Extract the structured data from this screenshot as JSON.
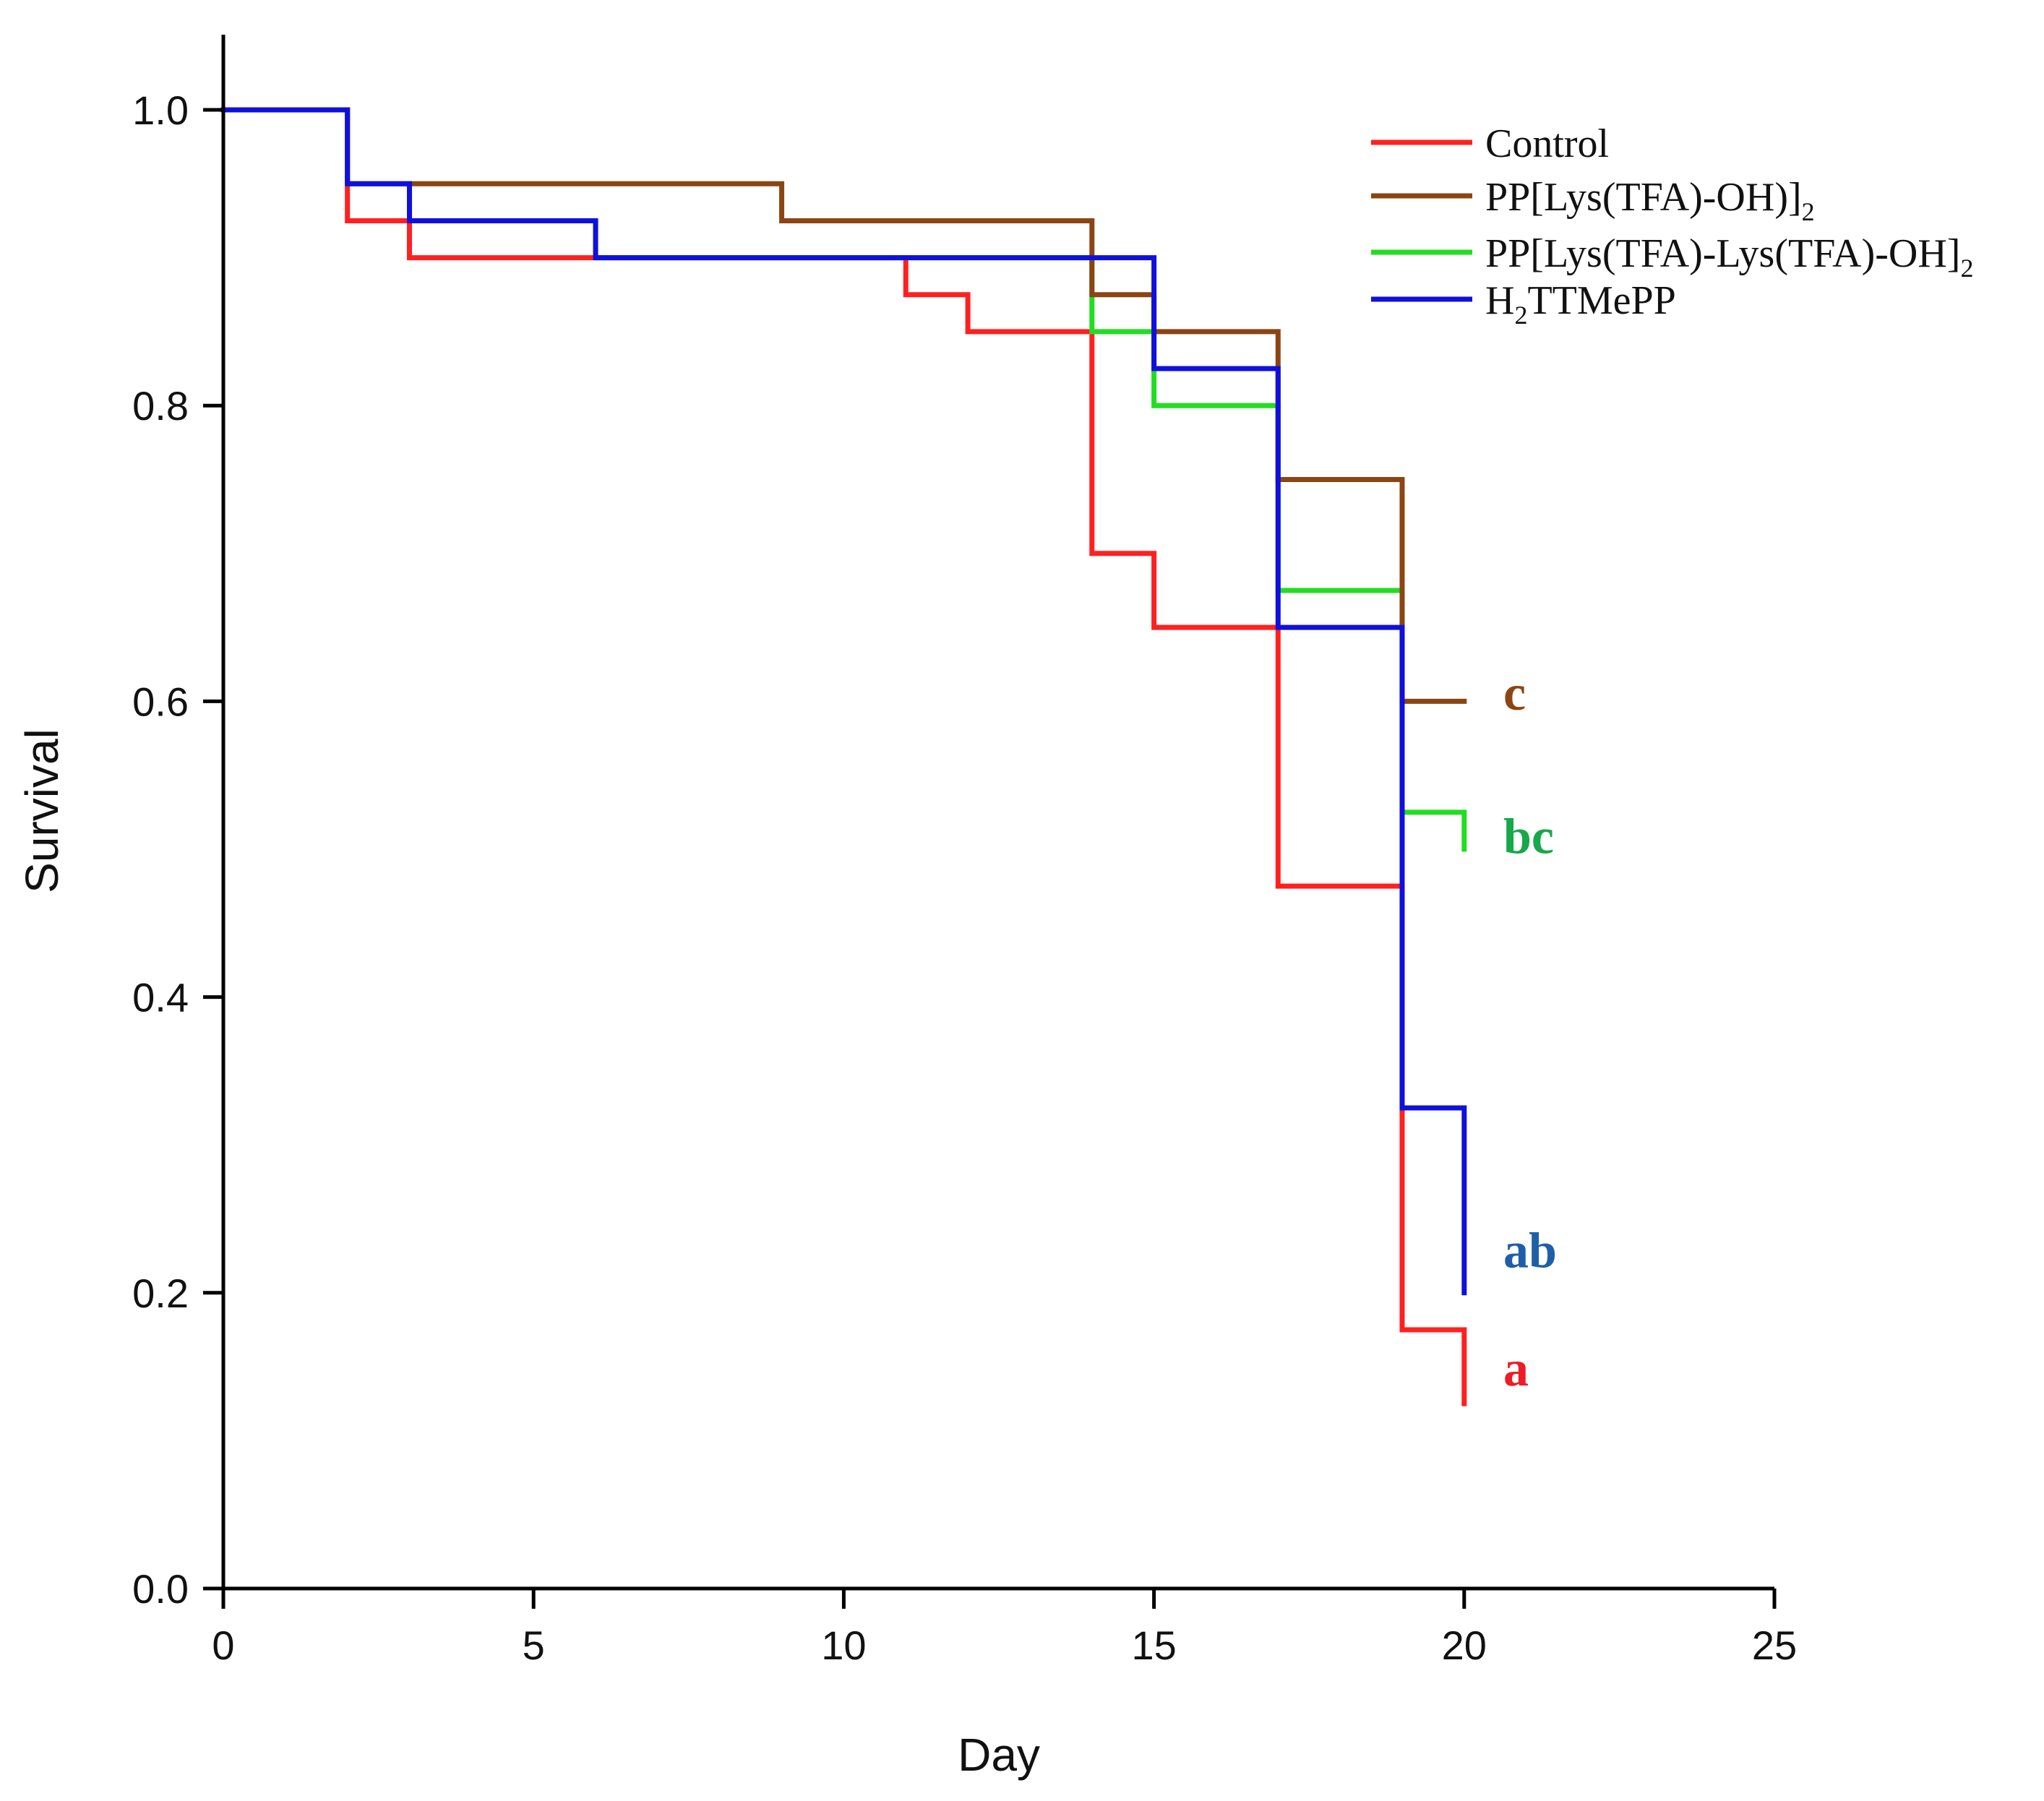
{
  "chart_data": {
    "type": "line",
    "subtype": "kaplan-meier step survival",
    "title": "",
    "xlabel": "Day",
    "ylabel": "Survival",
    "xlim": [
      0,
      25
    ],
    "ylim": [
      0,
      1.0
    ],
    "x_ticks": [
      0,
      5,
      10,
      15,
      20,
      25
    ],
    "x_tick_labels": [
      "0",
      "5",
      "10",
      "15",
      "20",
      "25"
    ],
    "y_ticks": [
      0.0,
      0.2,
      0.4,
      0.6,
      0.8,
      1.0
    ],
    "y_tick_labels": [
      "0.0",
      "0.2",
      "0.4",
      "0.6",
      "0.8",
      "1.0"
    ],
    "grid": false,
    "legend_position": "top-right",
    "series": [
      {
        "name": "Control",
        "legend": {
          "main": "Control",
          "sub": "",
          "tail": "",
          "pre": ""
        },
        "color": "#ff2020",
        "steps": [
          [
            0,
            1.0
          ],
          [
            2,
            0.925
          ],
          [
            3,
            0.9
          ],
          [
            11,
            0.875
          ],
          [
            12,
            0.85
          ],
          [
            14,
            0.7
          ],
          [
            15,
            0.65
          ],
          [
            17,
            0.475
          ],
          [
            19,
            0.175
          ],
          [
            20,
            0.125
          ]
        ],
        "end_x": 20,
        "significance": "a",
        "significance_color": "#ee1c25",
        "significance_value": 0.148
      },
      {
        "name": "PP[Lys(TFA)-OH)]2",
        "legend": {
          "pre": "",
          "main": "PP[Lys(TFA)-OH)]",
          "sub": "2",
          "tail": ""
        },
        "color": "#8b4513",
        "steps": [
          [
            0,
            1.0
          ],
          [
            2,
            0.95
          ],
          [
            9,
            0.925
          ],
          [
            14,
            0.875
          ],
          [
            15,
            0.85
          ],
          [
            17,
            0.75
          ],
          [
            19,
            0.6
          ]
        ],
        "end_x": 20,
        "significance": "c",
        "significance_color": "#8b4513",
        "significance_value": 0.605
      },
      {
        "name": "PP[Lys(TFA)-Lys(TFA)-OH]2",
        "legend": {
          "pre": "",
          "main": "PP[Lys(TFA)-Lys(TFA)-OH]",
          "sub": "2",
          "tail": ""
        },
        "color": "#22dd22",
        "steps": [
          [
            0,
            1.0
          ],
          [
            2,
            0.95
          ],
          [
            3,
            0.925
          ],
          [
            6,
            0.9
          ],
          [
            14,
            0.85
          ],
          [
            15,
            0.8
          ],
          [
            17,
            0.675
          ],
          [
            19,
            0.525
          ],
          [
            20,
            0.5
          ]
        ],
        "end_x": 20,
        "significance": "bc",
        "significance_color": "#17a84a",
        "significance_value": 0.508
      },
      {
        "name": "H2TTMePP",
        "legend": {
          "pre": "H",
          "sub": "2",
          "main": "",
          "tail": "TTMePP"
        },
        "color": "#1010dd",
        "steps": [
          [
            0,
            1.0
          ],
          [
            2,
            0.95
          ],
          [
            3,
            0.925
          ],
          [
            6,
            0.9
          ],
          [
            12,
            0.9
          ],
          [
            15,
            0.825
          ],
          [
            17,
            0.65
          ],
          [
            19,
            0.325
          ],
          [
            20,
            0.2
          ]
        ],
        "end_x": 20,
        "significance": "ab",
        "significance_color": "#1e5fa8",
        "significance_value": 0.228
      }
    ]
  }
}
